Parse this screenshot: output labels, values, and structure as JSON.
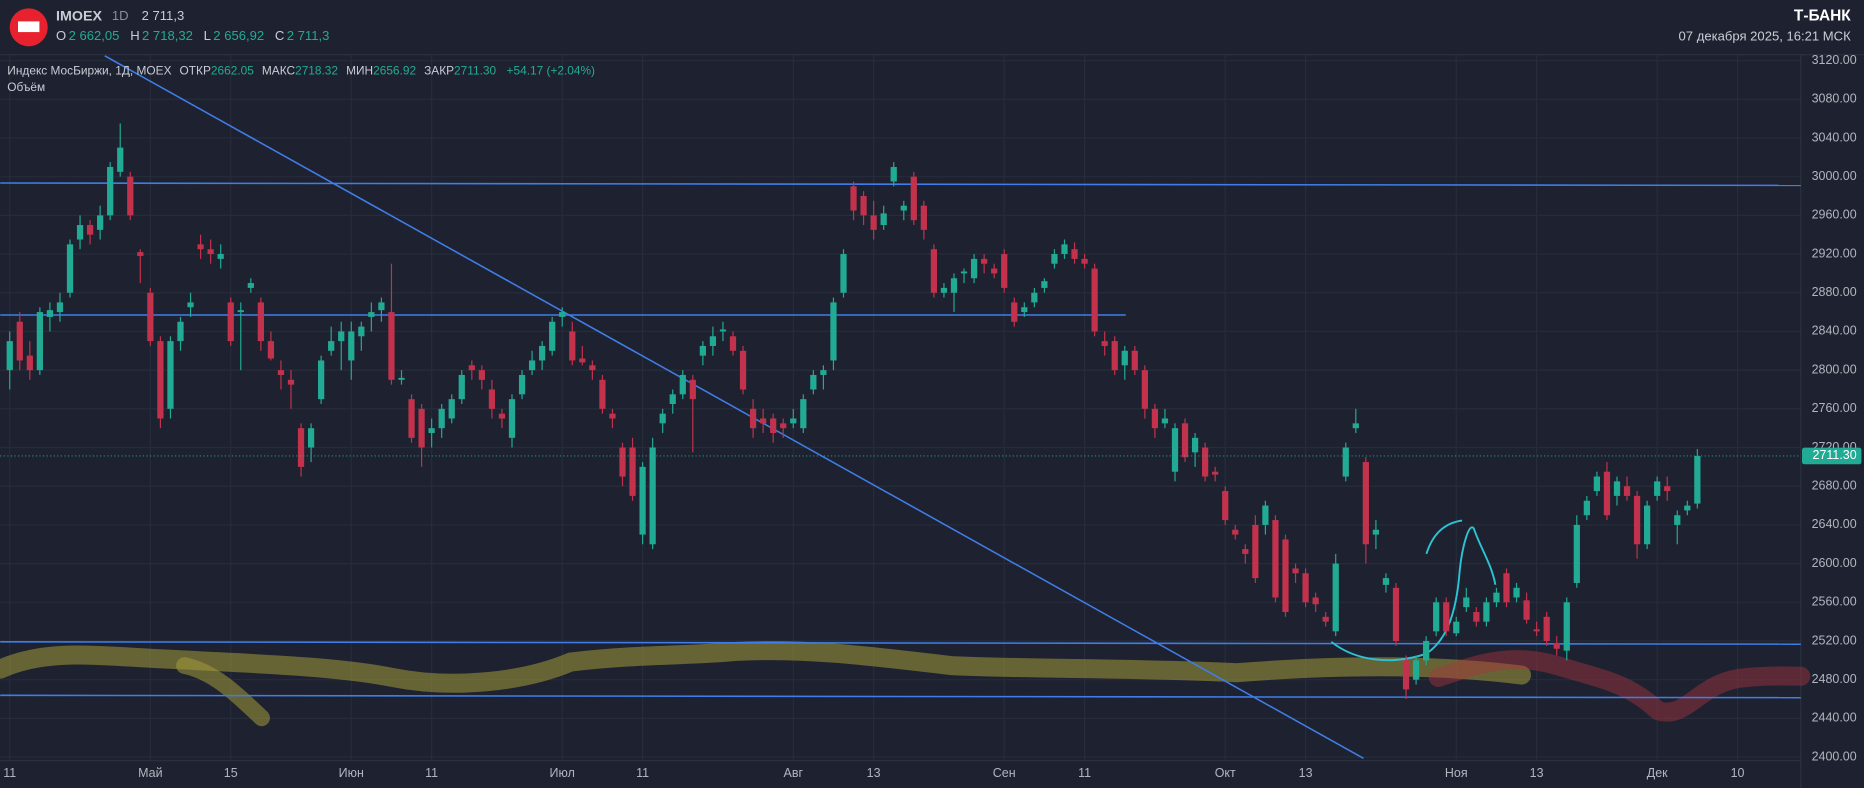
{
  "chart_data": {
    "type": "candlestick",
    "header": {
      "symbol": "IMOEX",
      "interval": "1D",
      "price": "2 711,3",
      "o_label": "O",
      "o": "2 662,05",
      "h_label": "H",
      "h": "2 718,32",
      "l_label": "L",
      "l": "2 656,92",
      "c_label": "C",
      "c": "2 711,3"
    },
    "brand": "Т-БАНК",
    "timestamp": "07 декабря 2025, 16:21 МСК",
    "legend": {
      "name": "Индекс МосБиржи, 1Д, MOEX",
      "open_label": "ОТКР",
      "open": "2662.05",
      "high_label": "МАКС",
      "high": "2718.32",
      "low_label": "МИН",
      "low": "2656.92",
      "close_label": "ЗАКР",
      "close": "2711.30",
      "change": "+54.17 (+2.04%)",
      "volume": "Объём"
    },
    "last_price_label": "2711.30",
    "up_color": "#22ab94",
    "down_color": "#c2324c",
    "xlim": [
      -0.95,
      178.3
    ],
    "xticks": [
      {
        "value": 0,
        "label": "11"
      },
      {
        "value": 14,
        "label": "Май"
      },
      {
        "value": 22,
        "label": "15"
      },
      {
        "value": 34,
        "label": "Июн"
      },
      {
        "value": 42,
        "label": "11"
      },
      {
        "value": 55,
        "label": "Июл"
      },
      {
        "value": 63,
        "label": "11"
      },
      {
        "value": 78,
        "label": "Авг"
      },
      {
        "value": 86,
        "label": "13"
      },
      {
        "value": 99,
        "label": "Сен"
      },
      {
        "value": 107,
        "label": "11"
      },
      {
        "value": 121,
        "label": "Окт"
      },
      {
        "value": 129,
        "label": "13"
      },
      {
        "value": 144,
        "label": "Ноя"
      },
      {
        "value": 152,
        "label": "13"
      },
      {
        "value": 164,
        "label": "Дек"
      },
      {
        "value": 172,
        "label": "10"
      }
    ],
    "ylim": [
      2396.3,
      3126.1
    ],
    "yticks": [
      {
        "value": 2400,
        "label": "2400.00"
      },
      {
        "value": 2440,
        "label": "2440.00"
      },
      {
        "value": 2480,
        "label": "2480.00"
      },
      {
        "value": 2520,
        "label": "2520.00"
      },
      {
        "value": 2560,
        "label": "2560.00"
      },
      {
        "value": 2600,
        "label": "2600.00"
      },
      {
        "value": 2640,
        "label": "2640.00"
      },
      {
        "value": 2680,
        "label": "2680.00"
      },
      {
        "value": 2720,
        "label": "2720.00"
      },
      {
        "value": 2760,
        "label": "2760.00"
      },
      {
        "value": 2800,
        "label": "2800.00"
      },
      {
        "value": 2840,
        "label": "2840.00"
      },
      {
        "value": 2880,
        "label": "2880.00"
      },
      {
        "value": 2920,
        "label": "2920.00"
      },
      {
        "value": 2960,
        "label": "2960.00"
      },
      {
        "value": 3000,
        "label": "3000.00"
      },
      {
        "value": 3040,
        "label": "3040.00"
      },
      {
        "value": 3080,
        "label": "3080.00"
      },
      {
        "value": 3120,
        "label": "3120.00"
      }
    ],
    "grid": true,
    "ohlc": [
      [
        2800,
        2840,
        2780,
        2830
      ],
      [
        2850,
        2860,
        2800,
        2810
      ],
      [
        2815,
        2830,
        2790,
        2800
      ],
      [
        2800,
        2865,
        2795,
        2860
      ],
      [
        2855,
        2870,
        2840,
        2862
      ],
      [
        2860,
        2880,
        2850,
        2870
      ],
      [
        2880,
        2935,
        2875,
        2930
      ],
      [
        2935,
        2960,
        2925,
        2950
      ],
      [
        2950,
        2955,
        2930,
        2940
      ],
      [
        2945,
        2970,
        2935,
        2960
      ],
      [
        2960,
        3015,
        2955,
        3010
      ],
      [
        3005,
        3055,
        3000,
        3030
      ],
      [
        3000,
        3005,
        2955,
        2960
      ],
      [
        2922,
        2925,
        2890,
        2918
      ],
      [
        2880,
        2885,
        2825,
        2830
      ],
      [
        2830,
        2835,
        2740,
        2750
      ],
      [
        2760,
        2835,
        2750,
        2830
      ],
      [
        2830,
        2855,
        2820,
        2850
      ],
      [
        2865,
        2880,
        2855,
        2870
      ],
      [
        2930,
        2940,
        2915,
        2925
      ],
      [
        2925,
        2935,
        2910,
        2920
      ],
      [
        2915,
        2930,
        2905,
        2920
      ],
      [
        2870,
        2875,
        2825,
        2830
      ],
      [
        2860,
        2870,
        2800,
        2862
      ],
      [
        2885,
        2895,
        2880,
        2890
      ],
      [
        2870,
        2875,
        2820,
        2830
      ],
      [
        2830,
        2840,
        2810,
        2812
      ],
      [
        2800,
        2810,
        2780,
        2795
      ],
      [
        2790,
        2800,
        2760,
        2785
      ],
      [
        2740,
        2745,
        2690,
        2700
      ],
      [
        2720,
        2745,
        2705,
        2740
      ],
      [
        2770,
        2815,
        2765,
        2810
      ],
      [
        2820,
        2845,
        2815,
        2830
      ],
      [
        2830,
        2850,
        2800,
        2840
      ],
      [
        2810,
        2850,
        2790,
        2840
      ],
      [
        2835,
        2850,
        2820,
        2845
      ],
      [
        2855,
        2870,
        2840,
        2860
      ],
      [
        2862,
        2875,
        2850,
        2870
      ],
      [
        2860,
        2910,
        2785,
        2790
      ],
      [
        2790,
        2800,
        2785,
        2792
      ],
      [
        2770,
        2775,
        2725,
        2730
      ],
      [
        2760,
        2765,
        2700,
        2720
      ],
      [
        2735,
        2750,
        2720,
        2740
      ],
      [
        2740,
        2765,
        2730,
        2760
      ],
      [
        2750,
        2775,
        2745,
        2770
      ],
      [
        2770,
        2800,
        2765,
        2795
      ],
      [
        2805,
        2810,
        2790,
        2800
      ],
      [
        2800,
        2805,
        2780,
        2790
      ],
      [
        2780,
        2790,
        2750,
        2760
      ],
      [
        2755,
        2760,
        2740,
        2750
      ],
      [
        2730,
        2775,
        2720,
        2770
      ],
      [
        2775,
        2800,
        2770,
        2795
      ],
      [
        2800,
        2820,
        2795,
        2810
      ],
      [
        2810,
        2830,
        2800,
        2825
      ],
      [
        2820,
        2855,
        2815,
        2850
      ],
      [
        2855,
        2865,
        2845,
        2860
      ],
      [
        2840,
        2850,
        2805,
        2810
      ],
      [
        2812,
        2825,
        2805,
        2808
      ],
      [
        2805,
        2810,
        2790,
        2800
      ],
      [
        2790,
        2795,
        2755,
        2760
      ],
      [
        2755,
        2760,
        2740,
        2750
      ],
      [
        2720,
        2725,
        2680,
        2690
      ],
      [
        2720,
        2730,
        2665,
        2670
      ],
      [
        2630,
        2705,
        2620,
        2700
      ],
      [
        2620,
        2730,
        2615,
        2720
      ],
      [
        2745,
        2760,
        2735,
        2755
      ],
      [
        2765,
        2780,
        2755,
        2775
      ],
      [
        2775,
        2800,
        2770,
        2795
      ],
      [
        2790,
        2795,
        2715,
        2770
      ],
      [
        2815,
        2830,
        2805,
        2825
      ],
      [
        2825,
        2845,
        2815,
        2835
      ],
      [
        2840,
        2850,
        2830,
        2842
      ],
      [
        2835,
        2840,
        2815,
        2820
      ],
      [
        2820,
        2825,
        2775,
        2780
      ],
      [
        2760,
        2770,
        2730,
        2740
      ],
      [
        2750,
        2760,
        2735,
        2745
      ],
      [
        2750,
        2755,
        2725,
        2735
      ],
      [
        2745,
        2750,
        2730,
        2740
      ],
      [
        2745,
        2760,
        2740,
        2750
      ],
      [
        2740,
        2775,
        2735,
        2770
      ],
      [
        2780,
        2800,
        2775,
        2795
      ],
      [
        2795,
        2805,
        2780,
        2800
      ],
      [
        2810,
        2875,
        2800,
        2870
      ],
      [
        2880,
        2925,
        2875,
        2920
      ],
      [
        2990,
        2995,
        2955,
        2965
      ],
      [
        2980,
        2985,
        2950,
        2960
      ],
      [
        2960,
        2975,
        2935,
        2945
      ],
      [
        2950,
        2970,
        2945,
        2962
      ],
      [
        2995,
        3015,
        2990,
        3010
      ],
      [
        2965,
        2975,
        2955,
        2970
      ],
      [
        3000,
        3005,
        2950,
        2955
      ],
      [
        2970,
        2975,
        2935,
        2945
      ],
      [
        2925,
        2930,
        2875,
        2880
      ],
      [
        2880,
        2890,
        2875,
        2885
      ],
      [
        2880,
        2900,
        2860,
        2895
      ],
      [
        2900,
        2905,
        2890,
        2902
      ],
      [
        2895,
        2920,
        2890,
        2915
      ],
      [
        2915,
        2920,
        2900,
        2910
      ],
      [
        2905,
        2910,
        2895,
        2900
      ],
      [
        2920,
        2925,
        2880,
        2885
      ],
      [
        2870,
        2875,
        2845,
        2850
      ],
      [
        2860,
        2870,
        2855,
        2865
      ],
      [
        2870,
        2885,
        2865,
        2880
      ],
      [
        2885,
        2895,
        2880,
        2892
      ],
      [
        2910,
        2925,
        2905,
        2920
      ],
      [
        2920,
        2935,
        2915,
        2930
      ],
      [
        2925,
        2932,
        2910,
        2915
      ],
      [
        2915,
        2920,
        2905,
        2910
      ],
      [
        2905,
        2910,
        2835,
        2840
      ],
      [
        2830,
        2840,
        2815,
        2825
      ],
      [
        2830,
        2835,
        2795,
        2800
      ],
      [
        2805,
        2825,
        2790,
        2820
      ],
      [
        2820,
        2825,
        2795,
        2800
      ],
      [
        2800,
        2805,
        2750,
        2760
      ],
      [
        2760,
        2765,
        2730,
        2740
      ],
      [
        2745,
        2760,
        2740,
        2750
      ],
      [
        2695,
        2745,
        2685,
        2740
      ],
      [
        2745,
        2750,
        2705,
        2710
      ],
      [
        2715,
        2735,
        2700,
        2730
      ],
      [
        2720,
        2725,
        2685,
        2690
      ],
      [
        2695,
        2700,
        2685,
        2692
      ],
      [
        2675,
        2680,
        2640,
        2645
      ],
      [
        2635,
        2640,
        2625,
        2630
      ],
      [
        2615,
        2620,
        2600,
        2610
      ],
      [
        2640,
        2650,
        2580,
        2585
      ],
      [
        2640,
        2665,
        2630,
        2660
      ],
      [
        2645,
        2650,
        2560,
        2565
      ],
      [
        2625,
        2630,
        2545,
        2550
      ],
      [
        2595,
        2600,
        2580,
        2590
      ],
      [
        2590,
        2595,
        2555,
        2560
      ],
      [
        2565,
        2570,
        2550,
        2558
      ],
      [
        2545,
        2550,
        2535,
        2540
      ],
      [
        2530,
        2610,
        2525,
        2600
      ],
      [
        2690,
        2725,
        2685,
        2720
      ],
      [
        2740,
        2760,
        2735,
        2745
      ],
      [
        2705,
        2710,
        2600,
        2620
      ],
      [
        2630,
        2645,
        2615,
        2635
      ],
      [
        2578,
        2590,
        2570,
        2585
      ],
      [
        2575,
        2580,
        2515,
        2520
      ],
      [
        2500,
        2505,
        2460,
        2470
      ],
      [
        2480,
        2505,
        2475,
        2500
      ],
      [
        2500,
        2525,
        2495,
        2520
      ],
      [
        2530,
        2565,
        2525,
        2560
      ],
      [
        2560,
        2565,
        2525,
        2530
      ],
      [
        2528,
        2545,
        2525,
        2540
      ],
      [
        2555,
        2575,
        2550,
        2565
      ],
      [
        2550,
        2555,
        2535,
        2540
      ],
      [
        2540,
        2565,
        2535,
        2560
      ],
      [
        2560,
        2575,
        2555,
        2570
      ],
      [
        2590,
        2595,
        2555,
        2560
      ],
      [
        2565,
        2580,
        2560,
        2575
      ],
      [
        2562,
        2570,
        2538,
        2542
      ],
      [
        2532,
        2540,
        2525,
        2530
      ],
      [
        2545,
        2550,
        2515,
        2520
      ],
      [
        2518,
        2525,
        2505,
        2512
      ],
      [
        2510,
        2565,
        2500,
        2560
      ],
      [
        2580,
        2650,
        2575,
        2640
      ],
      [
        2650,
        2670,
        2645,
        2665
      ],
      [
        2675,
        2695,
        2670,
        2690
      ],
      [
        2695,
        2705,
        2645,
        2650
      ],
      [
        2670,
        2690,
        2660,
        2685
      ],
      [
        2680,
        2690,
        2665,
        2670
      ],
      [
        2670,
        2675,
        2605,
        2620
      ],
      [
        2620,
        2665,
        2615,
        2660
      ],
      [
        2670,
        2690,
        2665,
        2685
      ],
      [
        2680,
        2690,
        2665,
        2675
      ],
      [
        2640,
        2655,
        2620,
        2650
      ],
      [
        2655,
        2665,
        2650,
        2660
      ],
      [
        2662.05,
        2718.32,
        2656.92,
        2711.3
      ]
    ]
  }
}
